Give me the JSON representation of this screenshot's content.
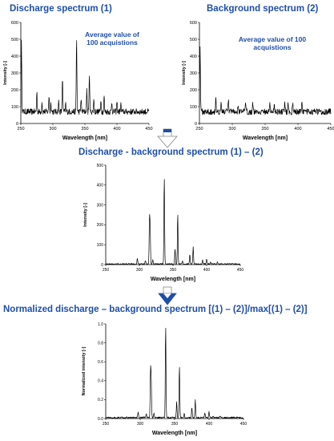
{
  "titles": {
    "discharge": "Discharge spectrum (1)",
    "background": "Background  spectrum (2)",
    "difference": "Discharge - background  spectrum (1) – (2)",
    "normalized": "Normalized discharge – background   spectrum [(1) – (2)]/max[(1) – (2)]"
  },
  "annotations": {
    "discharge_note": "Average value of 100 acquistions",
    "background_note": "Average value of 100 acquistions"
  },
  "colors": {
    "title_blue": "#1f4ea8",
    "arrow_fill": "#1f4ea8",
    "line": "#000000"
  },
  "chart_data": [
    {
      "id": "discharge",
      "type": "line",
      "xlabel": "Wavelength [nm]",
      "ylabel": "Intensity [-]",
      "xlim": [
        250,
        450
      ],
      "ylim": [
        0,
        600
      ],
      "xticks": [
        250,
        300,
        350,
        400,
        450
      ],
      "yticks": [
        0,
        100,
        200,
        300,
        400,
        500,
        600
      ],
      "baseline": 70,
      "noise": 18,
      "peaks": [
        [
          251,
          480
        ],
        [
          275,
          190
        ],
        [
          283,
          130
        ],
        [
          294,
          170
        ],
        [
          297,
          130
        ],
        [
          309,
          130
        ],
        [
          315,
          280
        ],
        [
          320,
          120
        ],
        [
          337,
          510
        ],
        [
          344,
          150
        ],
        [
          353,
          200
        ],
        [
          357,
          310
        ],
        [
          364,
          150
        ],
        [
          375,
          150
        ],
        [
          380,
          165
        ],
        [
          392,
          130
        ],
        [
          400,
          130
        ],
        [
          406,
          120
        ]
      ]
    },
    {
      "id": "background",
      "type": "line",
      "xlabel": "Wavelength [nm]",
      "ylabel": "Intensity [-]",
      "xlim": [
        250,
        450
      ],
      "ylim": [
        0,
        600
      ],
      "xticks": [
        250,
        300,
        350,
        400,
        450
      ],
      "yticks": [
        0,
        100,
        200,
        300,
        400,
        500,
        600
      ],
      "baseline": 70,
      "noise": 18,
      "peaks": [
        [
          251,
          470
        ],
        [
          275,
          160
        ],
        [
          283,
          130
        ],
        [
          294,
          140
        ],
        [
          309,
          120
        ],
        [
          320,
          120
        ],
        [
          331,
          120
        ],
        [
          357,
          120
        ],
        [
          364,
          125
        ],
        [
          380,
          130
        ],
        [
          385,
          125
        ],
        [
          392,
          120
        ],
        [
          406,
          115
        ]
      ]
    },
    {
      "id": "difference",
      "type": "line",
      "xlabel": "Wavelength [nm]",
      "ylabel": "Intensity [-]",
      "xlim": [
        250,
        450
      ],
      "ylim": [
        0,
        500
      ],
      "xticks": [
        250,
        300,
        350,
        400,
        450
      ],
      "yticks": [
        0,
        100,
        200,
        300,
        400,
        500
      ],
      "baseline": 3,
      "noise": 3,
      "peaks": [
        [
          297,
          30
        ],
        [
          309,
          20
        ],
        [
          315,
          220
        ],
        [
          316,
          185
        ],
        [
          320,
          25
        ],
        [
          337,
          450
        ],
        [
          353,
          80
        ],
        [
          357,
          260
        ],
        [
          364,
          20
        ],
        [
          375,
          50
        ],
        [
          380,
          90
        ],
        [
          394,
          25
        ],
        [
          400,
          30
        ],
        [
          406,
          15
        ],
        [
          416,
          12
        ]
      ]
    },
    {
      "id": "normalized",
      "type": "line",
      "xlabel": "Wavelength [nm]",
      "ylabel": "Normalized intensity [-]",
      "xlim": [
        250,
        450
      ],
      "ylim": [
        0,
        1.0
      ],
      "xticks": [
        250,
        300,
        350,
        400,
        450
      ],
      "yticks": [
        0,
        0.2,
        0.4,
        0.6,
        0.8,
        1.0
      ],
      "baseline": 0.01,
      "noise": 0.008,
      "peaks": [
        [
          297,
          0.07
        ],
        [
          309,
          0.05
        ],
        [
          315,
          0.49
        ],
        [
          316,
          0.4
        ],
        [
          320,
          0.06
        ],
        [
          337,
          1.0
        ],
        [
          353,
          0.18
        ],
        [
          357,
          0.57
        ],
        [
          364,
          0.05
        ],
        [
          375,
          0.12
        ],
        [
          380,
          0.2
        ],
        [
          394,
          0.06
        ],
        [
          400,
          0.07
        ],
        [
          406,
          0.03
        ],
        [
          416,
          0.025
        ]
      ]
    }
  ]
}
